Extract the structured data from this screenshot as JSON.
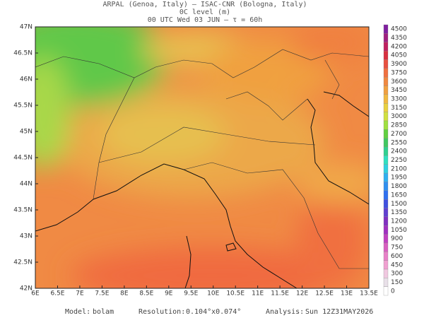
{
  "header": {
    "source": "ARPAL (Genoa, Italy)  –  ISAC-CNR (Bologna, Italy)",
    "field": "0C level (m)",
    "time": "00 UTC Wed 03 JUN  –  τ = 60h"
  },
  "map": {
    "lat_labels": [
      "47N",
      "46.5N",
      "46N",
      "45.5N",
      "45N",
      "44.5N",
      "44N",
      "43.5N",
      "43N",
      "42.5N",
      "42N"
    ],
    "lon_labels": [
      "6E",
      "6.5E",
      "7E",
      "7.5E",
      "8E",
      "8.5E",
      "9E",
      "9.5E",
      "10E",
      "10.5E",
      "11E",
      "11.5E",
      "12E",
      "12.5E",
      "13E",
      "13.5E"
    ]
  },
  "colorbar": {
    "levels": [
      0,
      150,
      300,
      450,
      600,
      750,
      900,
      1050,
      1200,
      1350,
      1500,
      1650,
      1800,
      1950,
      2100,
      2250,
      2400,
      2550,
      2700,
      2850,
      3000,
      3150,
      3300,
      3450,
      3600,
      3750,
      3900,
      4050,
      4200,
      4350,
      4500
    ],
    "colors": [
      "#ffffff",
      "#e8e0e8",
      "#f0c8e0",
      "#f0a0d0",
      "#e880c8",
      "#d860c0",
      "#c040c0",
      "#a030c0",
      "#8030c0",
      "#6040d0",
      "#4050e0",
      "#3070f0",
      "#3090f0",
      "#30b0f0",
      "#30d0e0",
      "#30e0c0",
      "#30d090",
      "#40c860",
      "#60d040",
      "#a0e040",
      "#d0e040",
      "#e8d040",
      "#f0b840",
      "#f0a040",
      "#f08840",
      "#f07040",
      "#e85040",
      "#d83040",
      "#c02060",
      "#a02080",
      "#8020a0"
    ]
  },
  "footer": {
    "model_label": "Model:",
    "model": "bolam",
    "resolution_label": "Resolution:",
    "resolution": "0.104°x0.074°",
    "analysis_label": "Analysis:",
    "analysis": "Sun 12Z31MAY2026"
  }
}
